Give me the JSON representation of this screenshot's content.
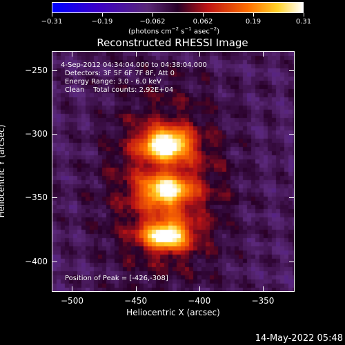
{
  "plot": {
    "title": "Reconstructed RHESSI Image",
    "xaxis_label": "Heliocentric X (arcsec)",
    "yaxis_label": "Heliocentric Y (arcsec)",
    "x_ticks": [
      "−500",
      "−450",
      "−400",
      "−350"
    ],
    "y_ticks": [
      "−250",
      "−300",
      "−350",
      "−400"
    ]
  },
  "colorbar": {
    "ticks": [
      "−0.31",
      "−0.19",
      "−0.062",
      "0.062",
      "0.19",
      "0.31"
    ],
    "units_prefix": "(photons cm",
    "units_sup1": "−2",
    "units_mid": " s",
    "units_sup2": "−1",
    "units_mid2": " asec",
    "units_sup3": "−2",
    "units_suffix": ")"
  },
  "info": {
    "time_range": "4-Sep-2012 04:34:04.000 to 04:38:04.000",
    "detectors": "Detectors: 3F 5F 6F 7F 8F, Att 0",
    "energy": "Energy Range: 3.0 - 6.0 keV",
    "clean": "Clean    Total counts: 2.92E+04",
    "peak": "Position of Peak = [-426,-308]"
  },
  "timestamp": "14-May-2022 05:48",
  "chart_data": {
    "type": "heatmap",
    "title": "Reconstructed RHESSI Image",
    "xlabel": "Heliocentric X (arcsec)",
    "ylabel": "Heliocentric Y (arcsec)",
    "xlim": [
      -516,
      -325
    ],
    "ylim": [
      -424,
      -235
    ],
    "colorbar_range": [
      -0.31,
      0.31
    ],
    "sources": [
      {
        "x": -426,
        "y": -308,
        "intensity": 1.0
      },
      {
        "x": -426,
        "y": -345,
        "intensity": 0.75
      },
      {
        "x": -426,
        "y": -380,
        "intensity": 0.9
      }
    ]
  }
}
